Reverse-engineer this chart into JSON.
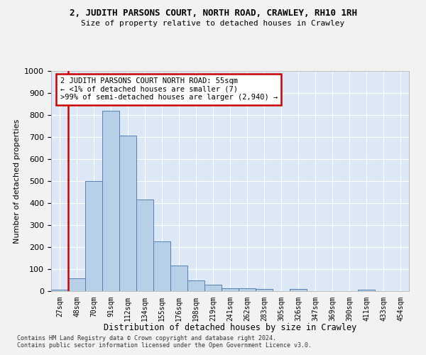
{
  "title": "2, JUDITH PARSONS COURT, NORTH ROAD, CRAWLEY, RH10 1RH",
  "subtitle": "Size of property relative to detached houses in Crawley",
  "xlabel": "Distribution of detached houses by size in Crawley",
  "ylabel": "Number of detached properties",
  "categories": [
    "27sqm",
    "48sqm",
    "70sqm",
    "91sqm",
    "112sqm",
    "134sqm",
    "155sqm",
    "176sqm",
    "198sqm",
    "219sqm",
    "241sqm",
    "262sqm",
    "283sqm",
    "305sqm",
    "326sqm",
    "347sqm",
    "369sqm",
    "390sqm",
    "411sqm",
    "433sqm",
    "454sqm"
  ],
  "values": [
    7,
    57,
    500,
    820,
    707,
    415,
    225,
    117,
    50,
    30,
    13,
    13,
    10,
    0,
    10,
    0,
    0,
    0,
    7,
    0,
    0
  ],
  "bar_color": "#b8cfe8",
  "bar_edge_color": "#5580b0",
  "annotation_text": "2 JUDITH PARSONS COURT NORTH ROAD: 55sqm\n← <1% of detached houses are smaller (7)\n>99% of semi-detached houses are larger (2,940) →",
  "annotation_box_color": "#ffffff",
  "annotation_box_edge_color": "#cc0000",
  "vline_x_index": 1,
  "vline_color": "#cc0000",
  "ylim": [
    0,
    1000
  ],
  "yticks": [
    0,
    100,
    200,
    300,
    400,
    500,
    600,
    700,
    800,
    900,
    1000
  ],
  "footer_line1": "Contains HM Land Registry data © Crown copyright and database right 2024.",
  "footer_line2": "Contains public sector information licensed under the Open Government Licence v3.0.",
  "fig_bg_color": "#f2f2f2",
  "plot_bg_color": "#dce8f5",
  "grid_color": "#ffffff"
}
